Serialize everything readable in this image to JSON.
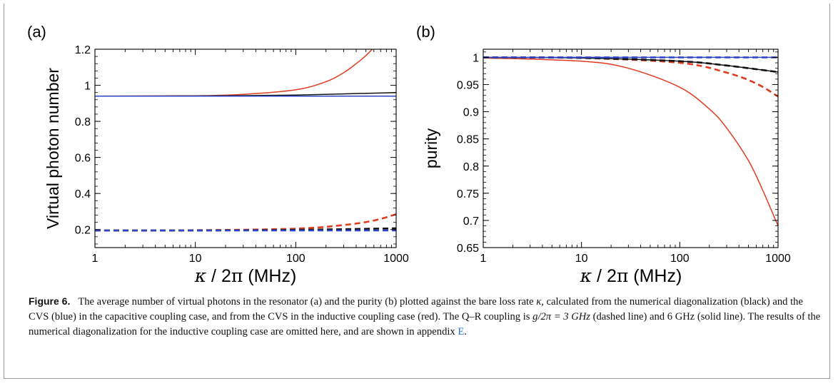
{
  "chart_data": [
    {
      "panel": "(a)",
      "type": "line",
      "xscale": "log",
      "xlim": [
        1,
        1000
      ],
      "ylim": [
        0.1,
        1.2
      ],
      "xticks": [
        "1",
        "10",
        "100",
        "1000"
      ],
      "yticks": [
        "0.2",
        "0.4",
        "0.6",
        "0.8",
        "1",
        "1.2"
      ],
      "ylabel": "Virtual photon number",
      "xlabel_parts": [
        "κ",
        " / 2",
        "π",
        " (MHz)"
      ],
      "series": [
        {
          "color": "#e03a1f",
          "dash": false,
          "x": [
            1,
            10,
            30,
            100,
            200,
            300,
            400,
            500,
            600
          ],
          "y": [
            0.94,
            0.942,
            0.95,
            0.975,
            1.02,
            1.07,
            1.12,
            1.165,
            1.21
          ]
        },
        {
          "color": "#111111",
          "dash": false,
          "x": [
            1,
            10,
            100,
            1000
          ],
          "y": [
            0.94,
            0.941,
            0.946,
            0.96
          ]
        },
        {
          "color": "#2f45c8",
          "dash": false,
          "x": [
            1,
            10,
            100,
            1000
          ],
          "y": [
            0.94,
            0.94,
            0.94,
            0.94
          ]
        },
        {
          "color": "#e03a1f",
          "dash": true,
          "x": [
            1,
            10,
            100,
            300,
            600,
            1000
          ],
          "y": [
            0.195,
            0.196,
            0.205,
            0.225,
            0.25,
            0.285
          ]
        },
        {
          "color": "#111111",
          "dash": true,
          "x": [
            1,
            10,
            100,
            1000
          ],
          "y": [
            0.195,
            0.195,
            0.198,
            0.207
          ]
        },
        {
          "color": "#2f45c8",
          "dash": true,
          "x": [
            1,
            10,
            100,
            1000
          ],
          "y": [
            0.195,
            0.195,
            0.195,
            0.195
          ]
        }
      ]
    },
    {
      "panel": "(b)",
      "type": "line",
      "xscale": "log",
      "xlim": [
        1,
        1000
      ],
      "ylim": [
        0.65,
        1.015
      ],
      "xticks": [
        "1",
        "10",
        "100",
        "1000"
      ],
      "yticks": [
        "0.65",
        "0.7",
        "0.75",
        "0.8",
        "0.85",
        "0.9",
        "0.95",
        "1"
      ],
      "ylabel": "purity",
      "xlabel_parts": [
        "κ",
        " / 2",
        "π",
        " (MHz)"
      ],
      "series": [
        {
          "color": "#e03a1f",
          "dash": false,
          "x": [
            1,
            10,
            30,
            100,
            200,
            300,
            500,
            700,
            1000
          ],
          "y": [
            0.999,
            0.993,
            0.98,
            0.945,
            0.905,
            0.87,
            0.81,
            0.755,
            0.69
          ]
        },
        {
          "color": "#111111",
          "dash": false,
          "x": [
            1,
            10,
            100,
            300,
            1000
          ],
          "y": [
            1.0,
            0.999,
            0.993,
            0.985,
            0.973
          ]
        },
        {
          "color": "#2f45c8",
          "dash": false,
          "x": [
            1,
            10,
            100,
            1000
          ],
          "y": [
            1.0,
            1.0,
            1.0,
            1.0
          ]
        },
        {
          "color": "#e03a1f",
          "dash": true,
          "x": [
            1,
            10,
            100,
            300,
            600,
            1000
          ],
          "y": [
            1.0,
            0.999,
            0.99,
            0.972,
            0.952,
            0.928
          ]
        },
        {
          "color": "#111111",
          "dash": true,
          "x": [
            1,
            10,
            100,
            300,
            1000
          ],
          "y": [
            1.0,
            0.999,
            0.993,
            0.985,
            0.973
          ]
        },
        {
          "color": "#2f45c8",
          "dash": true,
          "x": [
            1,
            10,
            100,
            1000
          ],
          "y": [
            1.0,
            1.0,
            1.0,
            1.0
          ]
        }
      ]
    }
  ],
  "caption": {
    "label": "Figure 6.",
    "p1": "The average number of virtual photons in the resonator (a) and the purity (b) plotted against the bare loss rate ",
    "kappa": "κ",
    "p2": ", calculated from the numerical diagonalization (black) and the CVS (blue) in the capacitive coupling case, and from the CVS in the inductive coupling case (red). The Q–R coupling is ",
    "math": "g/2π = 3 GHz",
    "p3": " (dashed line) and 6 GHz (solid line). The results of the numerical diagonalization for the inductive coupling case are omitted here, and are shown in appendix ",
    "link": "E",
    "p4": "."
  }
}
